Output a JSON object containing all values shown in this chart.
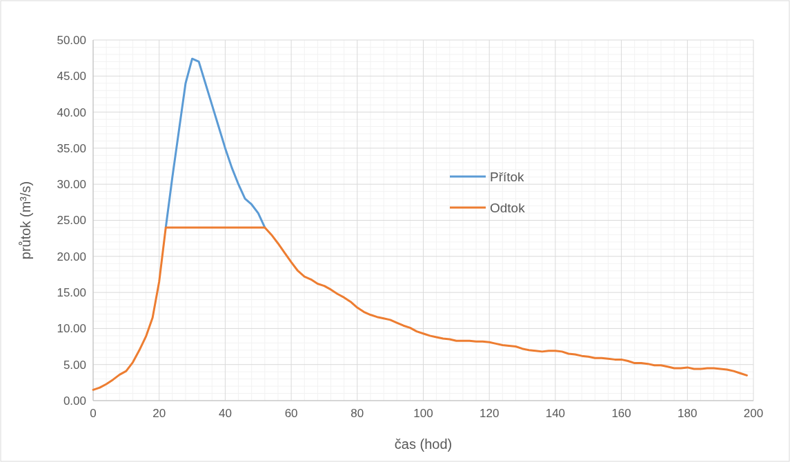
{
  "chart_data": {
    "type": "line",
    "xlabel": "čas (hod)",
    "ylabel": "průtok (m³/s)",
    "x": [
      0,
      2,
      4,
      6,
      8,
      10,
      12,
      14,
      16,
      18,
      20,
      22,
      24,
      26,
      28,
      30,
      32,
      34,
      36,
      38,
      40,
      42,
      44,
      46,
      48,
      50,
      52,
      54,
      56,
      58,
      60,
      62,
      64,
      66,
      68,
      70,
      72,
      74,
      76,
      78,
      80,
      82,
      84,
      86,
      88,
      90,
      92,
      94,
      96,
      98,
      100,
      102,
      104,
      106,
      108,
      110,
      112,
      114,
      116,
      118,
      120,
      122,
      124,
      126,
      128,
      130,
      132,
      134,
      136,
      138,
      140,
      142,
      144,
      146,
      148,
      150,
      152,
      154,
      156,
      158,
      160,
      162,
      164,
      166,
      168,
      170,
      172,
      174,
      176,
      178,
      180,
      182,
      184,
      186,
      188,
      190,
      192,
      194,
      196,
      198
    ],
    "series": [
      {
        "name": "Přítok",
        "color": "#5b9bd5",
        "values": [
          null,
          null,
          null,
          null,
          null,
          null,
          null,
          null,
          null,
          null,
          null,
          24.0,
          31.0,
          37.5,
          44.0,
          47.4,
          47.0,
          44.0,
          41.0,
          38.0,
          35.0,
          32.3,
          30.0,
          28.0,
          27.2,
          26.0,
          24.0,
          null,
          null,
          null,
          null,
          null,
          null,
          null,
          null,
          null,
          null,
          null,
          null,
          null,
          null,
          null,
          null,
          null,
          null,
          null,
          null,
          null,
          null,
          null,
          null,
          null,
          null,
          null,
          null,
          null,
          null,
          null,
          null,
          null,
          null,
          null,
          null,
          null,
          null,
          null,
          null,
          null,
          null,
          null,
          null,
          null,
          null,
          null,
          null,
          null,
          null,
          null,
          null,
          null,
          null,
          null,
          null,
          null,
          null,
          null,
          null,
          null,
          null,
          null,
          null,
          null,
          null,
          null,
          null,
          null,
          null,
          null,
          null,
          null
        ]
      },
      {
        "name": "Odtok",
        "color": "#ed7d31",
        "values": [
          1.5,
          1.8,
          2.3,
          2.9,
          3.6,
          4.1,
          5.3,
          7.0,
          8.9,
          11.5,
          16.5,
          24.0,
          24.0,
          24.0,
          24.0,
          24.0,
          24.0,
          24.0,
          24.0,
          24.0,
          24.0,
          24.0,
          24.0,
          24.0,
          24.0,
          24.0,
          24.0,
          23.0,
          21.8,
          20.5,
          19.2,
          18.0,
          17.2,
          16.8,
          16.2,
          15.9,
          15.4,
          14.8,
          14.3,
          13.7,
          12.9,
          12.3,
          11.9,
          11.6,
          11.4,
          11.2,
          10.8,
          10.4,
          10.1,
          9.6,
          9.3,
          9.0,
          8.8,
          8.6,
          8.5,
          8.3,
          8.3,
          8.3,
          8.2,
          8.2,
          8.1,
          7.9,
          7.7,
          7.6,
          7.5,
          7.2,
          7.0,
          6.9,
          6.8,
          6.9,
          6.9,
          6.8,
          6.5,
          6.4,
          6.2,
          6.1,
          5.9,
          5.9,
          5.8,
          5.7,
          5.7,
          5.5,
          5.2,
          5.2,
          5.1,
          4.9,
          4.9,
          4.7,
          4.5,
          4.5,
          4.6,
          4.4,
          4.4,
          4.5,
          4.5,
          4.4,
          4.3,
          4.1,
          3.8,
          3.5
        ]
      }
    ],
    "xlim": [
      0,
      200
    ],
    "xticks": [
      0,
      20,
      40,
      60,
      80,
      100,
      120,
      140,
      160,
      180,
      200
    ],
    "ylim": [
      0,
      50
    ],
    "yticks": [
      {
        "value": 0,
        "label": "0.00"
      },
      {
        "value": 5,
        "label": "5.00"
      },
      {
        "value": 10,
        "label": "10.00"
      },
      {
        "value": 15,
        "label": "15.00"
      },
      {
        "value": 20,
        "label": "20.00"
      },
      {
        "value": 25,
        "label": "25.00"
      },
      {
        "value": 30,
        "label": "30.00"
      },
      {
        "value": 35,
        "label": "35.00"
      },
      {
        "value": 40,
        "label": "40.00"
      },
      {
        "value": 45,
        "label": "45.00"
      },
      {
        "value": 50,
        "label": "50.00"
      }
    ],
    "grid": true,
    "legend": "right",
    "line_style": "solid",
    "marker": "none"
  }
}
